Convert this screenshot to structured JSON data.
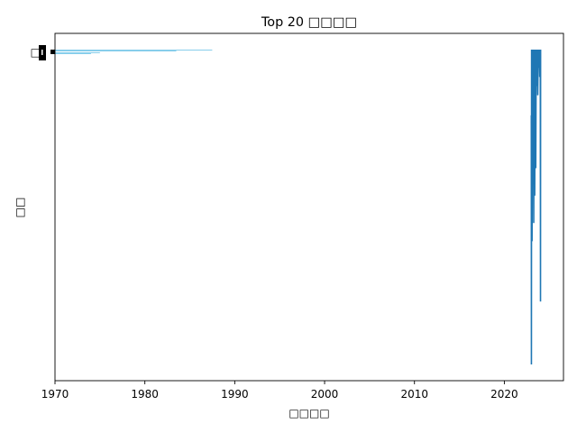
{
  "chart_data": {
    "type": "bar",
    "orientation": "horizontal",
    "title": "Top 20 □□□□",
    "xlabel": "□□□□",
    "ylabel": "□□",
    "x_scale": "date",
    "xlim": [
      "1970-01-01",
      "2026-08-01"
    ],
    "x_ticks": [
      "1970",
      "1980",
      "1990",
      "2000",
      "2010",
      "2020"
    ],
    "y_ticks": [
      "□"
    ],
    "grid": false,
    "legend": "none",
    "colors": {
      "bars": "#87ceeb",
      "line": "#1f77b4",
      "marker": "#000000"
    },
    "bars": [
      {
        "start": "1970-01-01",
        "end": "1987-07-01"
      },
      {
        "start": "1970-01-01",
        "end": "1983-07-01"
      },
      {
        "start": "1970-01-01",
        "end": "1975-01-01"
      },
      {
        "start": "1970-01-01",
        "end": "1974-01-01"
      }
    ],
    "series": [
      {
        "type": "line",
        "x": [
          "2023-01-01",
          "2023-01-06",
          "2023-01-12",
          "2023-01-16",
          "2023-01-20",
          "2023-02-01",
          "2023-02-15",
          "2023-03-01",
          "2023-03-20",
          "2023-04-10",
          "2023-05-01",
          "2023-05-20",
          "2023-06-10",
          "2023-07-01",
          "2023-07-20",
          "2023-08-10",
          "2023-09-01",
          "2023-09-20",
          "2023-10-10",
          "2023-11-01",
          "2023-11-20",
          "2023-12-10",
          "2024-01-01",
          "2024-01-06",
          "2024-01-10",
          "2024-01-14"
        ],
        "y": [
          0.72,
          3.45,
          0.0,
          1.5,
          0.0,
          2.1,
          0.0,
          0.8,
          0.0,
          1.9,
          0.0,
          1.6,
          0.0,
          1.3,
          0.0,
          0.4,
          0.0,
          0.5,
          0.0,
          0.2,
          0.0,
          0.3,
          0.0,
          1.4,
          2.76,
          0.0
        ]
      }
    ]
  }
}
